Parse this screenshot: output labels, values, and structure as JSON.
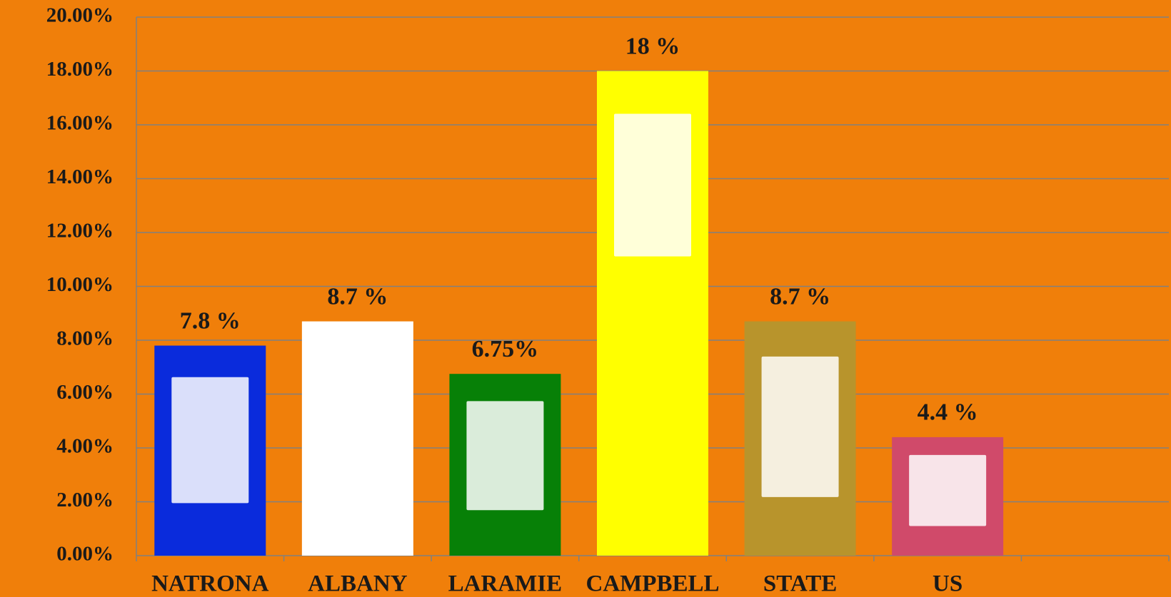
{
  "chart_data": {
    "type": "bar",
    "categories": [
      "NATRONA",
      "ALBANY",
      "LARAMIE",
      "CAMPBELL",
      "STATE",
      "US",
      null
    ],
    "values": [
      7.8,
      8.7,
      6.75,
      18,
      8.7,
      4.4,
      null
    ],
    "value_labels": [
      "7.8 %",
      "8.7 %",
      "6.75%",
      "18 %",
      "8.7 %",
      "4.4 %",
      null
    ],
    "colors": [
      "#0a2bdc",
      "#ffffff",
      "#078007",
      "#ffff00",
      "#b8942c",
      "#d04a6a",
      null
    ],
    "ylim": [
      0,
      20
    ],
    "yticks": [
      {
        "value": 0,
        "label": "0.00%"
      },
      {
        "value": 2,
        "label": "2.00%"
      },
      {
        "value": 4,
        "label": "4.00%"
      },
      {
        "value": 6,
        "label": "6.00%"
      },
      {
        "value": 8,
        "label": "8.00%"
      },
      {
        "value": 10,
        "label": "10.00%"
      },
      {
        "value": 12,
        "label": "12.00%"
      },
      {
        "value": 14,
        "label": "14.00%"
      },
      {
        "value": 16,
        "label": "16.00%"
      },
      {
        "value": 18,
        "label": "18.00%"
      },
      {
        "value": 20,
        "label": "20.00%"
      }
    ],
    "grid": true
  }
}
